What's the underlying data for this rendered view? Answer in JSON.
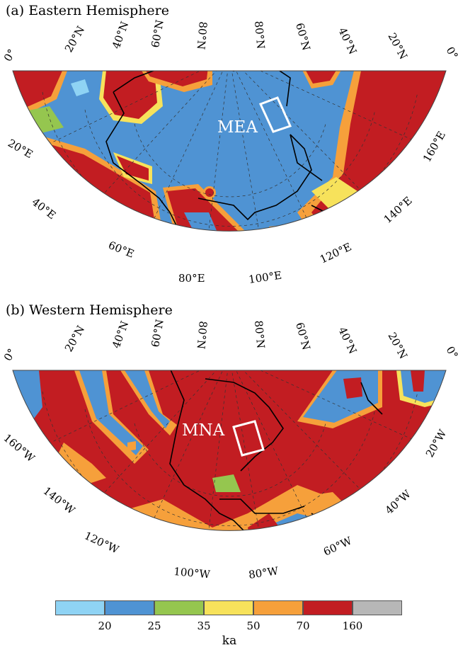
{
  "panels": [
    {
      "title": "(a) Eastern Hemisphere",
      "region_label": "MEA",
      "lat_labels_left": [
        "0°",
        "20°N",
        "40°N",
        "60°N",
        "80°N"
      ],
      "lat_labels_right": [
        "80°N",
        "60°N",
        "40°N",
        "20°N",
        "0°"
      ],
      "lon_labels": [
        "20°E",
        "40°E",
        "60°E",
        "80°E",
        "100°E",
        "120°E",
        "140°E",
        "160°E"
      ]
    },
    {
      "title": "(b) Western Hemisphere",
      "region_label": "MNA",
      "lat_labels_left": [
        "0°",
        "20°N",
        "40°N",
        "60°N",
        "80°N"
      ],
      "lat_labels_right": [
        "80°N",
        "60°N",
        "40°N",
        "20°N",
        "0°"
      ],
      "lon_labels": [
        "160°W",
        "140°W",
        "120°W",
        "100°W",
        "80°W",
        "60°W",
        "40°W",
        "20°W"
      ]
    }
  ],
  "legend": {
    "unit": "ka",
    "ticks": [
      "20",
      "25",
      "35",
      "50",
      "70",
      "160"
    ],
    "colors": [
      "#8fd3f4",
      "#4f93d3",
      "#95c64f",
      "#f7e25b",
      "#f6a03b",
      "#c21d22",
      "#b7b7b7"
    ]
  },
  "colors": {
    "ocean_blue": "#4f93d3",
    "light_blue": "#8fd3f4",
    "green": "#95c64f",
    "yellow": "#f7e25b",
    "orange": "#f6a03b",
    "red": "#c21d22",
    "grey": "#b7b7b7"
  }
}
